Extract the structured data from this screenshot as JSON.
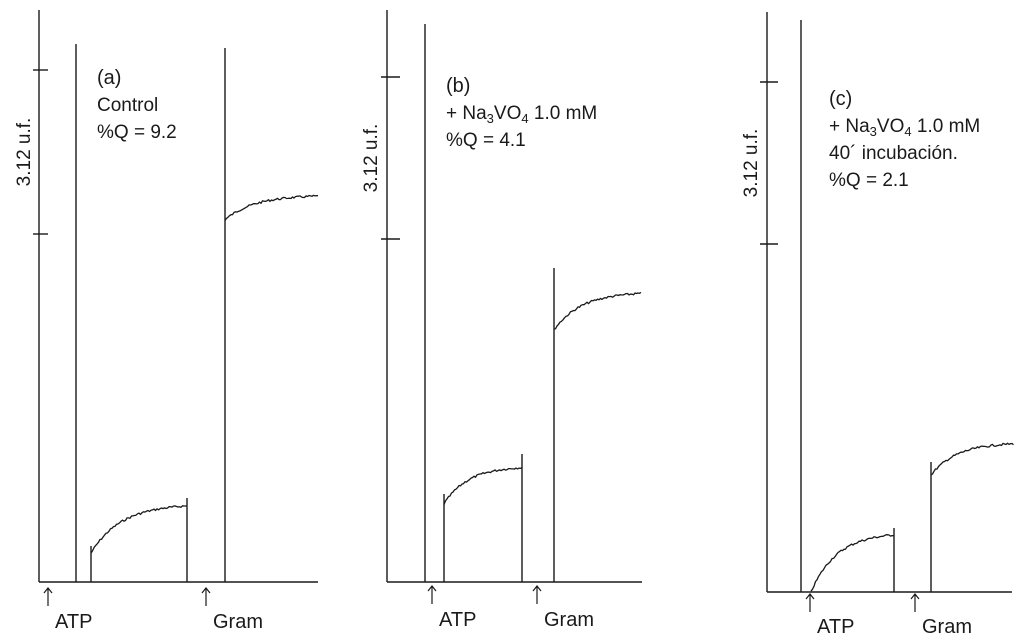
{
  "chart_data": [
    {
      "type": "line",
      "panel_label": "(a)",
      "condition_lines": [
        "Control",
        "%Q = 9.2"
      ],
      "scale_label": "3.12 u.f.",
      "arrow_labels": [
        "ATP",
        "Gram"
      ],
      "quench_percent": 9.2,
      "y_unit": "u.f.",
      "scale_bar": 3.12,
      "series": [
        {
          "segment": "after ATP",
          "start": 0.55,
          "plateau": 1.45
        },
        {
          "segment": "after Gram",
          "start": 6.9,
          "plateau": 7.35
        }
      ]
    },
    {
      "type": "line",
      "panel_label": "(b)",
      "condition_lines": [
        "+ Na3VO4 1.0 mM",
        "%Q = 4.1"
      ],
      "scale_label": "3.12 u.f.",
      "arrow_labels": [
        "ATP",
        "Gram"
      ],
      "quench_percent": 4.1,
      "y_unit": "u.f.",
      "scale_bar": 3.12,
      "series": [
        {
          "segment": "after ATP",
          "start": 1.5,
          "plateau": 2.2
        },
        {
          "segment": "after Gram",
          "start": 4.85,
          "plateau": 5.55
        }
      ]
    },
    {
      "type": "line",
      "panel_label": "(c)",
      "condition_lines": [
        "+ Na3VO4 1.0 mM",
        "40´ incubación.",
        "%Q = 2.1"
      ],
      "scale_label": "3.12 u.f.",
      "arrow_labels": [
        "ATP",
        "Gram"
      ],
      "quench_percent": 2.1,
      "y_unit": "u.f.",
      "scale_bar": 3.12,
      "series": [
        {
          "segment": "after ATP",
          "start": 0.0,
          "plateau": 1.1
        },
        {
          "segment": "after Gram",
          "start": 2.25,
          "plateau": 2.85
        }
      ]
    }
  ]
}
